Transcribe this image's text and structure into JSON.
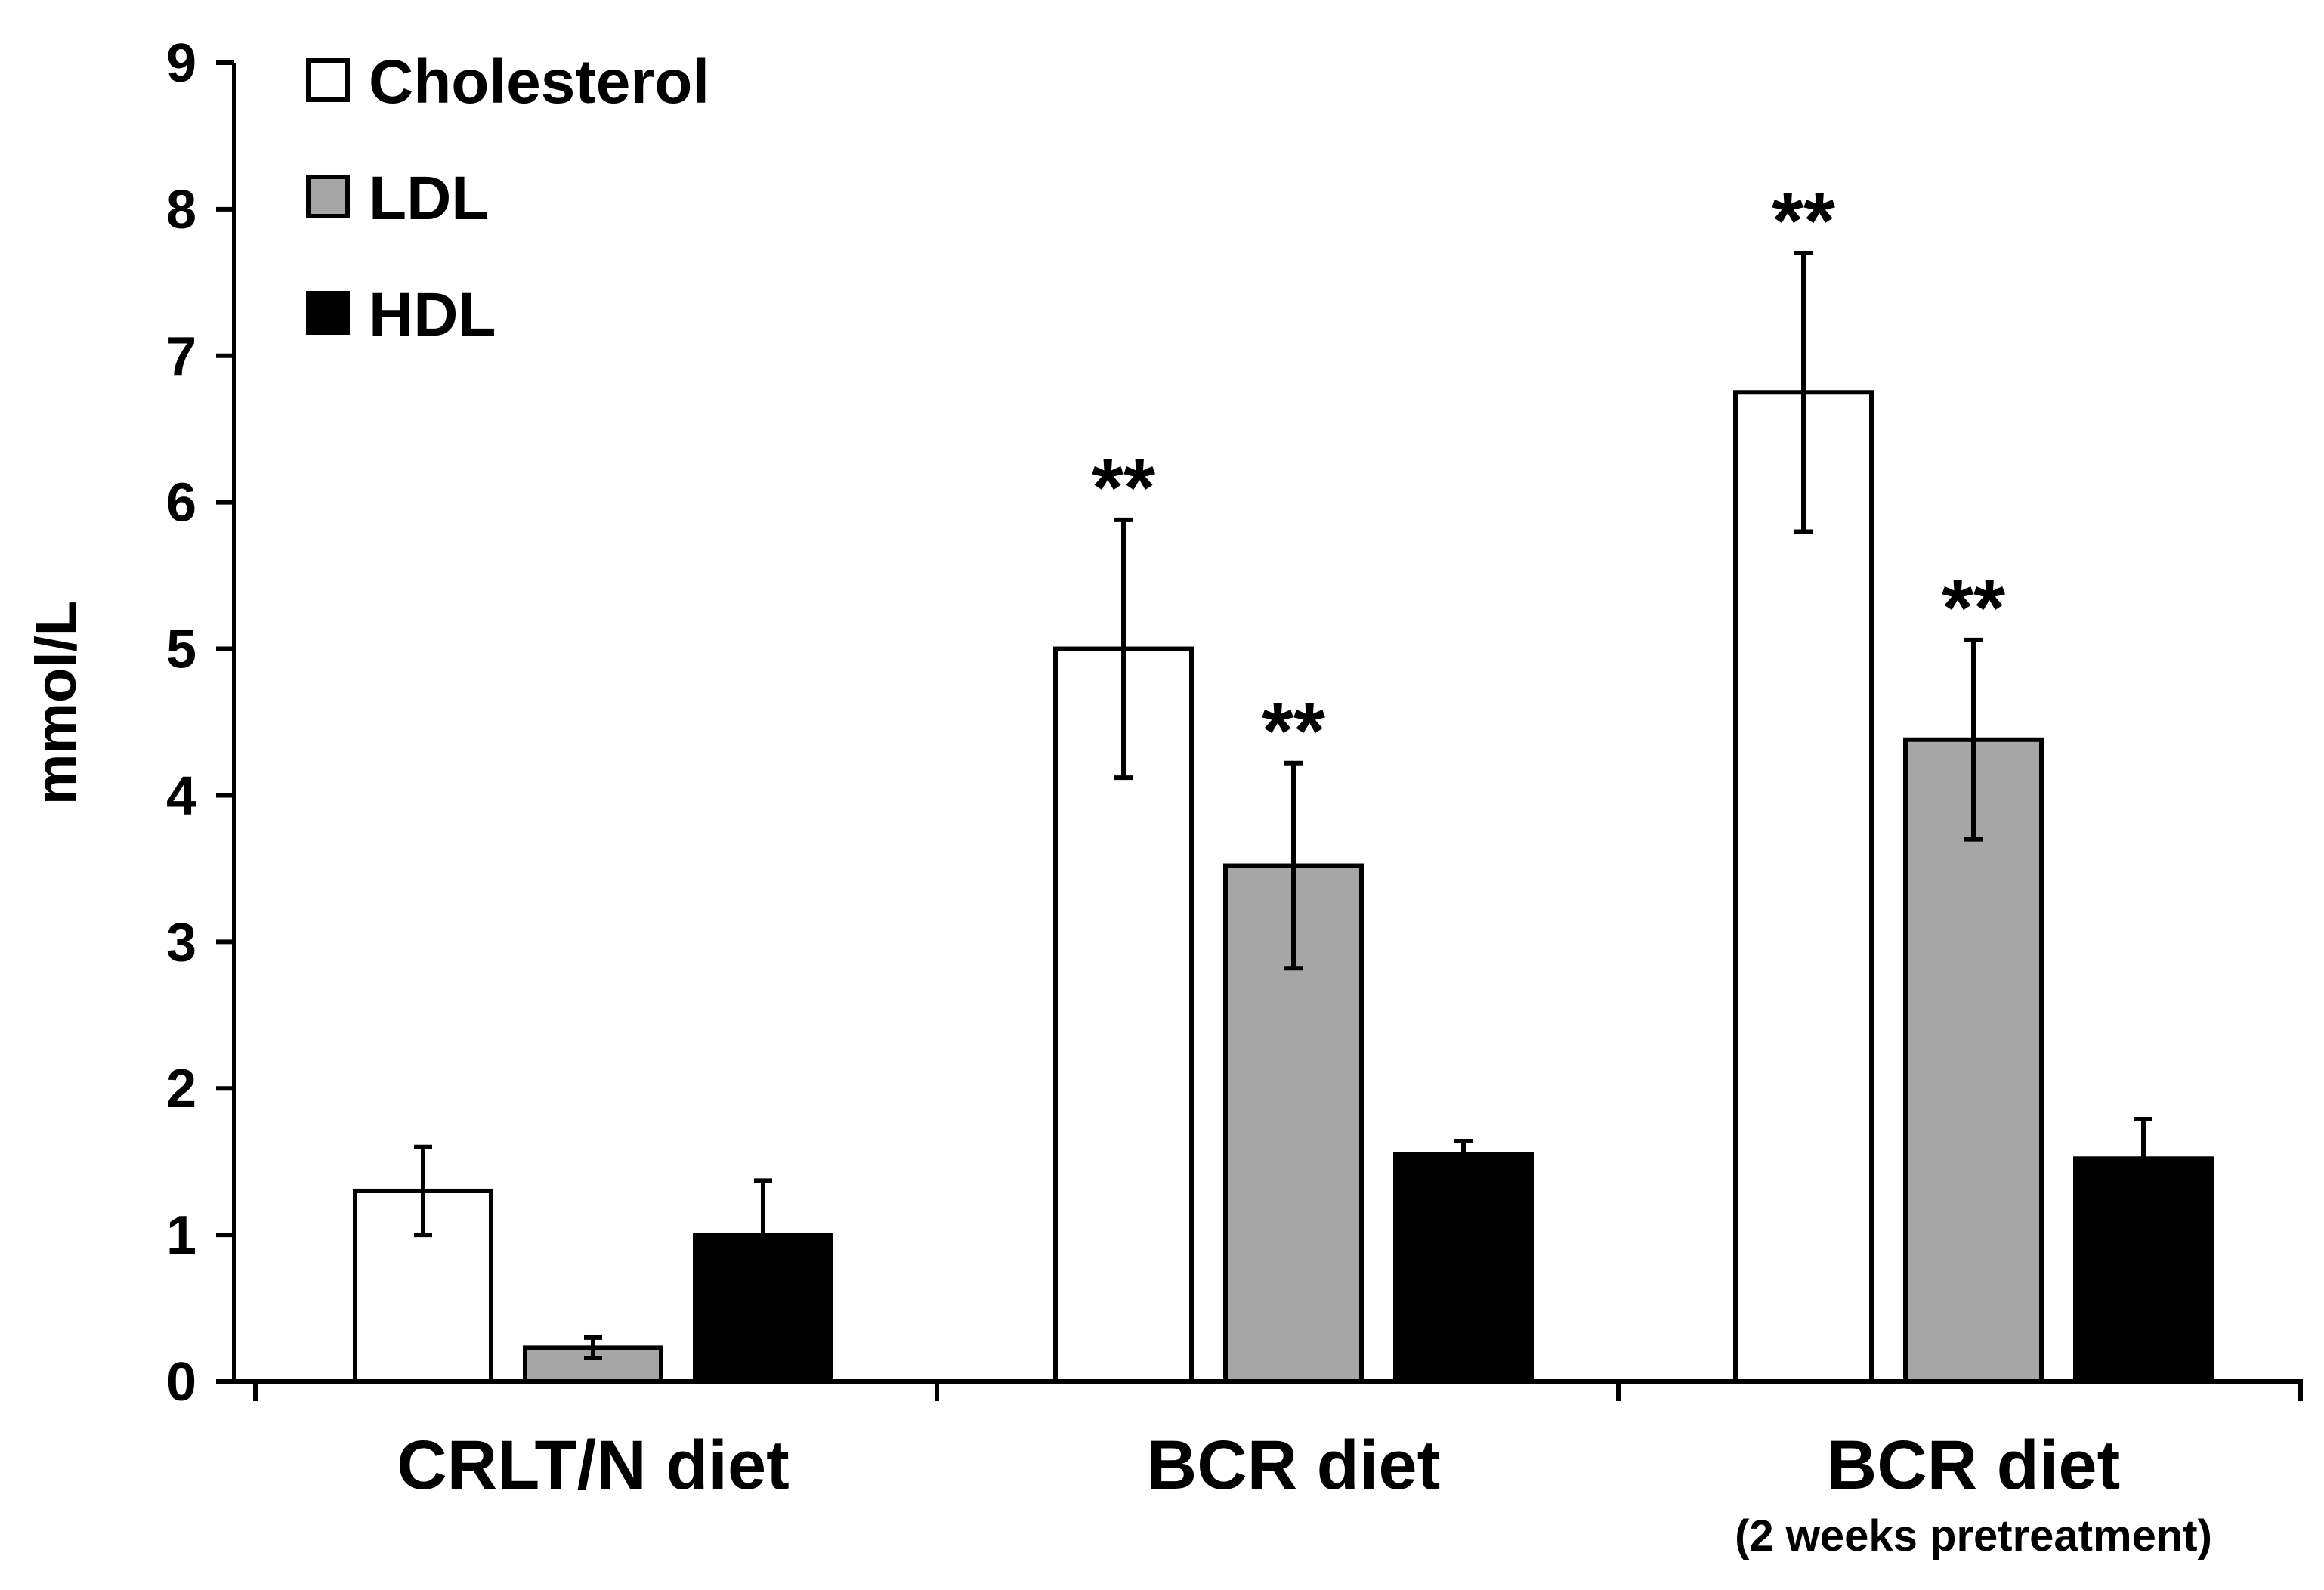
{
  "chart_data": {
    "type": "bar",
    "title": "",
    "xlabel": "",
    "ylabel": "mmol/L",
    "ylim": [
      0,
      9
    ],
    "yticks": [
      "0",
      "1",
      "2",
      "3",
      "4",
      "5",
      "6",
      "7",
      "8",
      "9"
    ],
    "categories": [
      {
        "label": "CRLT/N diet",
        "sublabel": ""
      },
      {
        "label": "BCR diet",
        "sublabel": ""
      },
      {
        "label": "BCR diet",
        "sublabel": "(2 weeks pretreatment)"
      }
    ],
    "series": [
      {
        "name": "Cholesterol",
        "color": "#ffffff",
        "values": [
          1.3,
          5.0,
          6.75
        ],
        "errors": [
          0.3,
          0.88,
          0.95
        ]
      },
      {
        "name": "LDL",
        "color": "#a6a6a6",
        "values": [
          0.23,
          3.52,
          4.38
        ],
        "errors": [
          0.07,
          0.7,
          0.68
        ]
      },
      {
        "name": "HDL",
        "color": "#000000",
        "values": [
          1.0,
          1.55,
          1.52
        ],
        "errors": [
          0.37,
          0.09,
          0.27
        ]
      }
    ],
    "annotations": [
      {
        "text": "**",
        "category": 1,
        "series": 0
      },
      {
        "text": "**",
        "category": 1,
        "series": 1
      },
      {
        "text": "**",
        "category": 2,
        "series": 0
      },
      {
        "text": "**",
        "category": 2,
        "series": 1
      }
    ],
    "legend": {
      "position": "top-left"
    }
  }
}
